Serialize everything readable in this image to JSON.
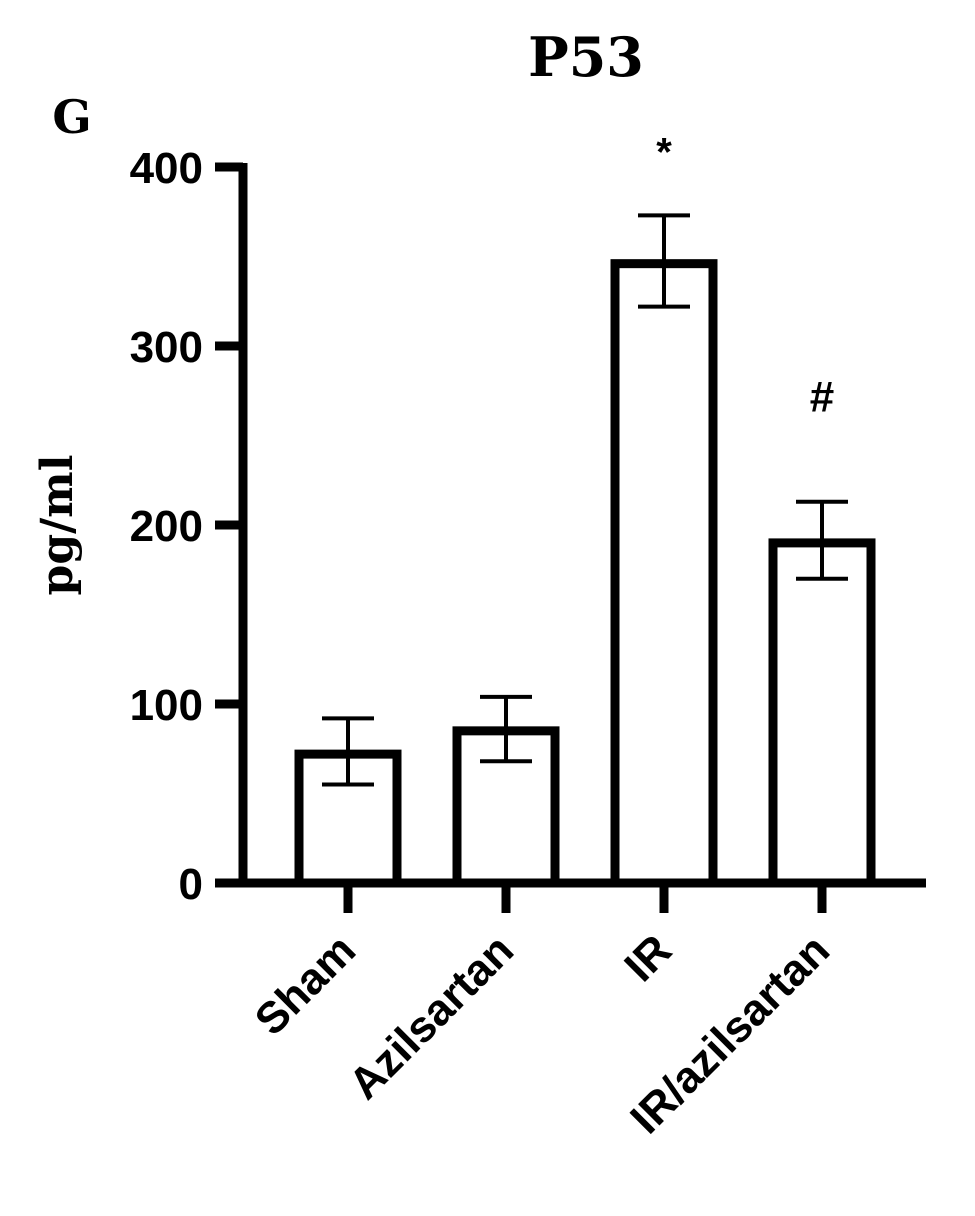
{
  "panel_label": "G",
  "chart_data": {
    "type": "bar",
    "title": "P53",
    "xlabel": "",
    "ylabel": "pg/ml",
    "ylim": [
      0,
      400
    ],
    "yticks": [
      0,
      100,
      200,
      300,
      400
    ],
    "ytick_labels": [
      "0",
      "100",
      "200",
      "300",
      "400"
    ],
    "categories": [
      "Sham",
      "Azilsartan",
      "IR",
      "IR/azilsartan"
    ],
    "values": [
      72,
      85,
      346,
      190
    ],
    "error_upper": [
      92,
      104,
      373,
      213
    ],
    "error_lower": [
      55,
      68,
      322,
      170
    ],
    "annotations": [
      "",
      "",
      "*",
      "#"
    ],
    "bar_fill": "#ffffff",
    "bar_stroke": "#000000",
    "grid": false,
    "legend": "none"
  }
}
